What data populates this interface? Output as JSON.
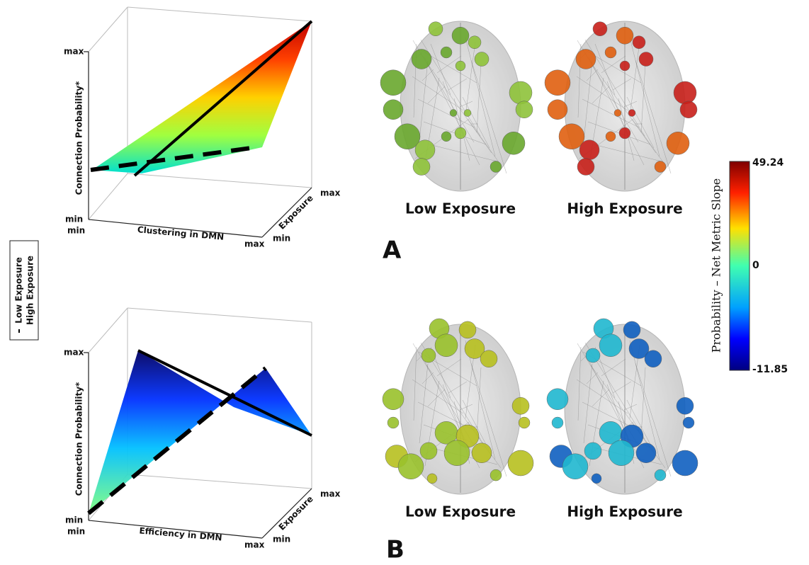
{
  "legend": {
    "low": "Low Exposure",
    "high": "High Exposure"
  },
  "panels": [
    {
      "label": "A",
      "plot": {
        "z_label": "Connection Probability*",
        "z_max": "max",
        "z_min": "min",
        "x_label": "Clustering in DMN",
        "x_min": "min",
        "x_max": "max",
        "y_label": "Exposure",
        "y_min": "min",
        "y_max": "max"
      },
      "brains": [
        "Low Exposure",
        "High Exposure"
      ]
    },
    {
      "label": "B",
      "plot": {
        "z_label": "Connection Probability*",
        "z_max": "max",
        "z_min": "min",
        "x_label": "Efficiency in DMN",
        "x_min": "min",
        "x_max": "max",
        "y_label": "Exposure",
        "y_min": "min",
        "y_max": "max"
      },
      "brains": [
        "Low Exposure",
        "High Exposure"
      ]
    }
  ],
  "colorbar": {
    "title": "Probability – Net Metric Slope",
    "max": 49.24,
    "mid": 0,
    "min": -11.85
  }
}
